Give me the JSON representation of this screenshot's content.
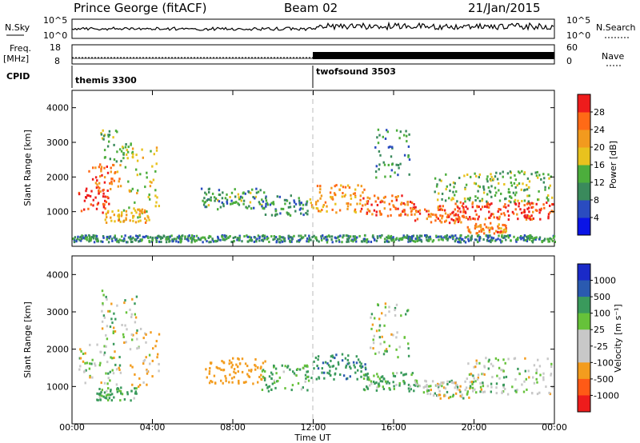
{
  "header": {
    "station": "Prince George (fitACF)",
    "beam": "Beam 02",
    "date": "21/Jan/2015"
  },
  "summary": {
    "nsky_label": "N.Sky",
    "nsearch_label": "N.Search",
    "freq_label_line1": "Freq.",
    "freq_label_line2": "[MHz]",
    "nave_label": "Nave",
    "cpid_label": "CPID",
    "count_axis_top": "10^5",
    "count_axis_bottom": "10^0",
    "freq_ticks": [
      "18",
      "8"
    ],
    "nave_ticks": [
      "60",
      "0"
    ]
  },
  "cpid": {
    "modes": [
      {
        "name": "themis 3300",
        "start_hour": 0
      },
      {
        "name": "twofsound 3503",
        "start_hour": 12
      }
    ]
  },
  "chart_data": [
    {
      "type": "heatmap",
      "panel": "power",
      "xlabel": "",
      "ylabel": "Slant Range [km]",
      "xlim": [
        0,
        24
      ],
      "ylim": [
        0,
        4500
      ],
      "yticks": [
        1000,
        2000,
        3000,
        4000
      ],
      "colorbar": {
        "label": "Power [dB]",
        "ticks": [
          "28",
          "24",
          "20",
          "16",
          "12",
          "8",
          "4"
        ],
        "colors": [
          "#0a14e6",
          "#2a4cc0",
          "#3a8a5c",
          "#4cae3c",
          "#e8c21e",
          "#f29a1e",
          "#ff6a16",
          "#ee1c1c"
        ]
      },
      "echo_bands": [
        {
          "t0": 0.3,
          "t1": 1.8,
          "r0": 1000,
          "r1": 1800,
          "level": 28
        },
        {
          "t0": 0.8,
          "t1": 2.4,
          "r0": 1600,
          "r1": 2400,
          "level": 22
        },
        {
          "t0": 1.4,
          "t1": 3.0,
          "r0": 2400,
          "r1": 3400,
          "level": 12
        },
        {
          "t0": 1.6,
          "t1": 3.8,
          "r0": 700,
          "r1": 1100,
          "level": 18
        },
        {
          "t0": 2.6,
          "t1": 4.3,
          "r0": 1000,
          "r1": 2900,
          "level": 14
        },
        {
          "t0": 6.4,
          "t1": 9.6,
          "r0": 1100,
          "r1": 1700,
          "level": 10
        },
        {
          "t0": 9.4,
          "t1": 11.8,
          "r0": 900,
          "r1": 1500,
          "level": 9
        },
        {
          "t0": 11.8,
          "t1": 14.5,
          "r0": 1000,
          "r1": 1800,
          "level": 20
        },
        {
          "t0": 14.3,
          "t1": 17.0,
          "r0": 900,
          "r1": 1500,
          "level": 24
        },
        {
          "t0": 15.0,
          "t1": 16.8,
          "r0": 2000,
          "r1": 3400,
          "level": 9
        },
        {
          "t0": 16.8,
          "t1": 19.5,
          "r0": 700,
          "r1": 1200,
          "level": 24
        },
        {
          "t0": 19.0,
          "t1": 23.9,
          "r0": 800,
          "r1": 1300,
          "level": 26
        },
        {
          "t0": 19.5,
          "t1": 21.6,
          "r0": 400,
          "r1": 700,
          "level": 22
        },
        {
          "t0": 18.0,
          "t1": 23.9,
          "r0": 1300,
          "r1": 2200,
          "level": 12
        },
        {
          "t0": 0.0,
          "t1": 24.0,
          "r0": 150,
          "r1": 350,
          "level": 8
        }
      ]
    },
    {
      "type": "heatmap",
      "panel": "velocity",
      "xlabel": "Time UT",
      "ylabel": "Slant Range [km]",
      "xlim": [
        0,
        24
      ],
      "ylim": [
        0,
        4500
      ],
      "yticks": [
        1000,
        2000,
        3000,
        4000
      ],
      "xticks": [
        "00:00",
        "04:00",
        "08:00",
        "12:00",
        "16:00",
        "20:00",
        "00:00"
      ],
      "colorbar": {
        "label": "Velocity [m s⁻¹]",
        "ticks": [
          "1000",
          "500",
          "100",
          "25",
          "-25",
          "-100",
          "-500",
          "-1000"
        ],
        "colors": [
          "#ee1c1c",
          "#ff5a16",
          "#f39c1e",
          "#c8c8c8",
          "#c8c8c8",
          "#66c23a",
          "#3a9a5c",
          "#2a5ab0",
          "#1a2ac8"
        ]
      },
      "echo_bands": [
        {
          "t0": 0.3,
          "t1": 2.4,
          "r0": 1000,
          "r1": 2200,
          "value": 0
        },
        {
          "t0": 1.4,
          "t1": 3.2,
          "r0": 2200,
          "r1": 3600,
          "value": 0
        },
        {
          "t0": 1.2,
          "t1": 3.2,
          "r0": 650,
          "r1": 1000,
          "value": 150
        },
        {
          "t0": 2.8,
          "t1": 4.3,
          "r0": 1000,
          "r1": 2600,
          "value": -100
        },
        {
          "t0": 6.6,
          "t1": 9.6,
          "r0": 1100,
          "r1": 1800,
          "value": -300
        },
        {
          "t0": 9.4,
          "t1": 11.8,
          "r0": 900,
          "r1": 1600,
          "value": 150
        },
        {
          "t0": 11.8,
          "t1": 14.6,
          "r0": 1200,
          "r1": 1900,
          "value": 400
        },
        {
          "t0": 14.4,
          "t1": 17.2,
          "r0": 900,
          "r1": 1400,
          "value": 150
        },
        {
          "t0": 14.8,
          "t1": 16.8,
          "r0": 1800,
          "r1": 3300,
          "value": 0
        },
        {
          "t0": 17.0,
          "t1": 20.0,
          "r0": 700,
          "r1": 1200,
          "value": 0
        },
        {
          "t0": 19.5,
          "t1": 23.9,
          "r0": 800,
          "r1": 1800,
          "value": 0
        }
      ]
    }
  ]
}
